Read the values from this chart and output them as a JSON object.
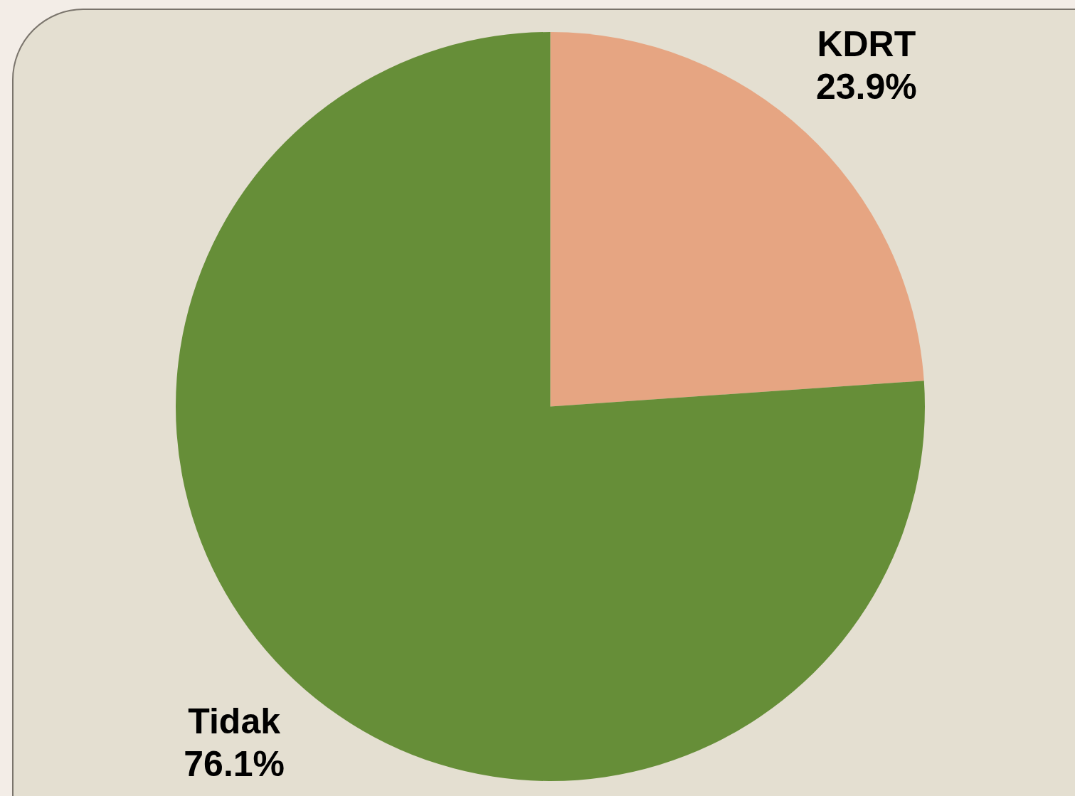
{
  "chart_data": {
    "type": "pie",
    "categories": [
      "KDRT",
      "Tidak"
    ],
    "values": [
      23.9,
      76.1
    ],
    "colors": [
      "#e6a582",
      "#668e38"
    ],
    "value_labels": [
      "23.9%",
      "76.1%"
    ],
    "legend": false
  }
}
